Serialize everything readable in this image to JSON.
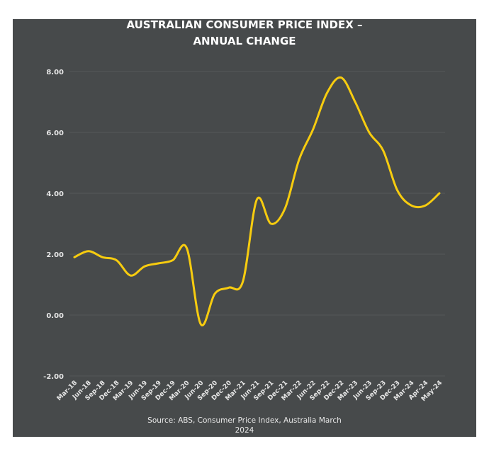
{
  "chart_data": {
    "type": "line",
    "title": "AUSTRALIAN CONSUMER PRICE INDEX –",
    "title_line2": "ANNUAL CHANGE",
    "source_line1": "Source: ABS, Consumer Price Index, Australia March",
    "source_line2": "2024",
    "categories": [
      "Mar-18",
      "Jun-18",
      "Sep-18",
      "Dec-18",
      "Mar-19",
      "Jun-19",
      "Sep-19",
      "Dec-19",
      "Mar-20",
      "Jun-20",
      "Sep-20",
      "Dec-20",
      "Mar-21",
      "Jun-21",
      "Sep-21",
      "Dec-21",
      "Mar-22",
      "Jun-22",
      "Sep-22",
      "Dec-22",
      "Mar-23",
      "Jun-23",
      "Sep-23",
      "Dec-23",
      "Mar-24",
      "Apr-24",
      "May-24"
    ],
    "values": [
      1.9,
      2.1,
      1.9,
      1.8,
      1.3,
      1.6,
      1.7,
      1.8,
      2.2,
      -0.3,
      0.7,
      0.9,
      1.1,
      3.8,
      3.0,
      3.5,
      5.1,
      6.1,
      7.3,
      7.8,
      7.0,
      6.0,
      5.4,
      4.1,
      3.6,
      3.6,
      4.0
    ],
    "yticks": [
      "-2.00",
      "0.00",
      "2.00",
      "4.00",
      "6.00",
      "8.00"
    ],
    "ylim": [
      -2,
      8
    ],
    "grid": true,
    "line_color": "#f7cc0f",
    "background": "#474a4b"
  }
}
